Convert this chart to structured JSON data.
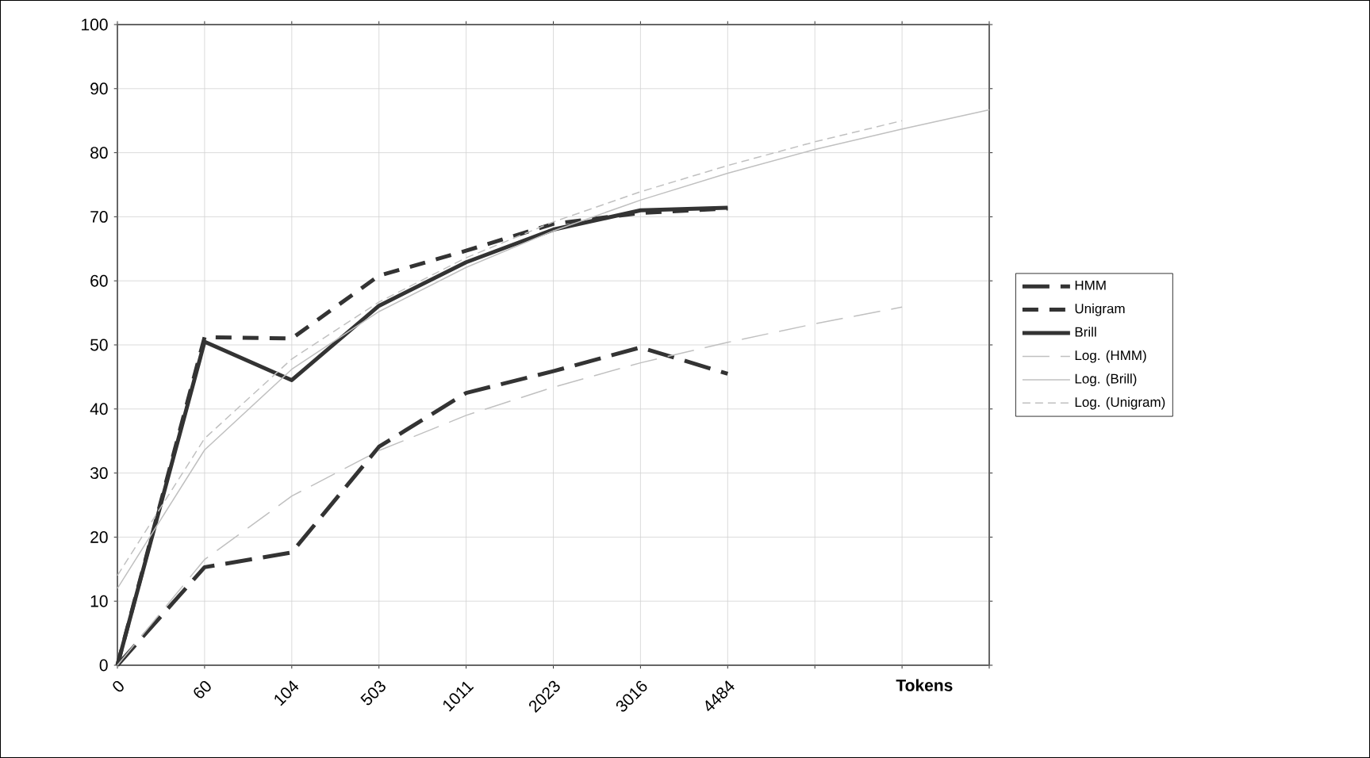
{
  "chart_data": {
    "type": "line",
    "xlabel": "Tokens",
    "categories": [
      "0",
      "60",
      "104",
      "503",
      "1011",
      "2023",
      "3016",
      "4484",
      null,
      null,
      null
    ],
    "ylim": [
      0,
      100
    ],
    "yticks": [
      0,
      10,
      20,
      30,
      40,
      50,
      60,
      70,
      80,
      90,
      100
    ],
    "grid": true,
    "legend": "right",
    "series": [
      {
        "name": "HMM",
        "color": "#333333",
        "line_style": "dashed",
        "values": [
          0,
          15.3,
          17.6,
          34.1,
          42.5,
          45.9,
          49.6,
          45.5,
          null,
          null,
          null
        ]
      },
      {
        "name": "Unigram",
        "color": "#333333",
        "line_style": "dashed",
        "values": [
          0,
          51.2,
          51,
          60.8,
          64.7,
          68.9,
          70.6,
          71.3,
          null,
          null,
          null
        ]
      },
      {
        "name": "Brill",
        "color": "#333333",
        "line_style": "solid",
        "values": [
          0,
          50.5,
          44.5,
          56.1,
          62.9,
          68,
          71,
          71.4,
          null,
          null,
          null
        ]
      },
      {
        "name": "Log. (HMM)",
        "color": "#c0c0c0",
        "line_style": "dashed",
        "values": [
          0,
          16.5,
          26.4,
          33.5,
          39,
          43.4,
          47.2,
          50.4,
          53.3,
          55.9,
          null
        ]
      },
      {
        "name": "Log. (Brill)",
        "color": "#c0c0c0",
        "line_style": "solid",
        "values": [
          12,
          33.6,
          46.2,
          55.2,
          62.1,
          67.8,
          72.6,
          76.8,
          80.5,
          83.7,
          86.7
        ]
      },
      {
        "name": "Log. (Unigram)",
        "color": "#c0c0c0",
        "line_style": "dotted",
        "values": [
          14,
          35.4,
          47.8,
          56.7,
          63.6,
          69.2,
          73.9,
          78,
          81.7,
          85,
          null
        ]
      }
    ]
  }
}
